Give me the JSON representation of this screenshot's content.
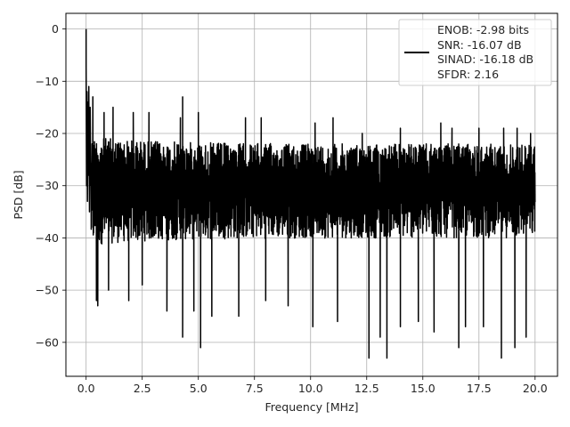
{
  "chart_data": {
    "type": "line",
    "title": "",
    "xlabel": "Frequency [MHz]",
    "ylabel": "PSD [dB]",
    "xlim": [
      -0.9,
      21.0
    ],
    "ylim": [
      -66.5,
      3.0
    ],
    "xticks": [
      0.0,
      2.5,
      5.0,
      7.5,
      10.0,
      12.5,
      15.0,
      17.5,
      20.0
    ],
    "xtick_labels": [
      "0.0",
      "2.5",
      "5.0",
      "7.5",
      "10.0",
      "12.5",
      "15.0",
      "17.5",
      "20.0"
    ],
    "yticks": [
      0,
      -10,
      -20,
      -30,
      -40,
      -50,
      -60
    ],
    "ytick_labels": [
      "0",
      "−10",
      "−20",
      "−30",
      "−40",
      "−50",
      "−60"
    ],
    "grid": true,
    "legend_position": "top-right",
    "legend": {
      "lines": [
        "ENOB: -2.98 bits",
        "SNR: -16.07 dB",
        "SINAD: -16.18 dB",
        "SFDR: 2.16"
      ]
    },
    "series": [
      {
        "color": "#000000",
        "x_range": [
          0,
          20
        ],
        "peak": {
          "x": 0.0,
          "y": 0
        },
        "near_dc": [
          [
            0.0,
            -7
          ],
          [
            0.02,
            -30
          ],
          [
            0.04,
            -12
          ],
          [
            0.06,
            -33
          ],
          [
            0.08,
            -14
          ],
          [
            0.1,
            -28
          ],
          [
            0.12,
            -11
          ],
          [
            0.15,
            -35
          ],
          [
            0.18,
            -15
          ],
          [
            0.21,
            -30
          ]
        ],
        "band_upper_typical": -22,
        "band_lower_typical": -40,
        "upper_spikes": [
          [
            0.3,
            -13
          ],
          [
            0.8,
            -16
          ],
          [
            1.2,
            -15
          ],
          [
            2.1,
            -16
          ],
          [
            2.8,
            -16
          ],
          [
            4.2,
            -17
          ],
          [
            4.3,
            -13
          ],
          [
            5.0,
            -16
          ],
          [
            7.1,
            -17
          ],
          [
            7.8,
            -17
          ],
          [
            10.2,
            -18
          ],
          [
            11.0,
            -17
          ],
          [
            12.3,
            -20
          ],
          [
            14.0,
            -19
          ],
          [
            15.8,
            -18
          ],
          [
            16.3,
            -19
          ],
          [
            17.5,
            -19
          ],
          [
            18.6,
            -19
          ],
          [
            19.2,
            -19
          ],
          [
            19.8,
            -20
          ]
        ],
        "lower_spikes": [
          [
            0.46,
            -52
          ],
          [
            0.52,
            -53
          ],
          [
            1.0,
            -50
          ],
          [
            1.9,
            -52
          ],
          [
            2.5,
            -49
          ],
          [
            3.6,
            -54
          ],
          [
            4.3,
            -59
          ],
          [
            4.8,
            -54
          ],
          [
            5.1,
            -61
          ],
          [
            5.6,
            -55
          ],
          [
            6.8,
            -55
          ],
          [
            8.0,
            -52
          ],
          [
            9.0,
            -53
          ],
          [
            10.1,
            -57
          ],
          [
            11.2,
            -55
          ],
          [
            11.2,
            -56
          ],
          [
            12.6,
            -63
          ],
          [
            13.1,
            -59
          ],
          [
            13.4,
            -63
          ],
          [
            14.0,
            -57
          ],
          [
            14.8,
            -56
          ],
          [
            15.5,
            -58
          ],
          [
            16.6,
            -61
          ],
          [
            16.9,
            -57
          ],
          [
            17.7,
            -57
          ],
          [
            18.5,
            -63
          ],
          [
            19.1,
            -61
          ],
          [
            19.6,
            -59
          ]
        ]
      }
    ]
  }
}
